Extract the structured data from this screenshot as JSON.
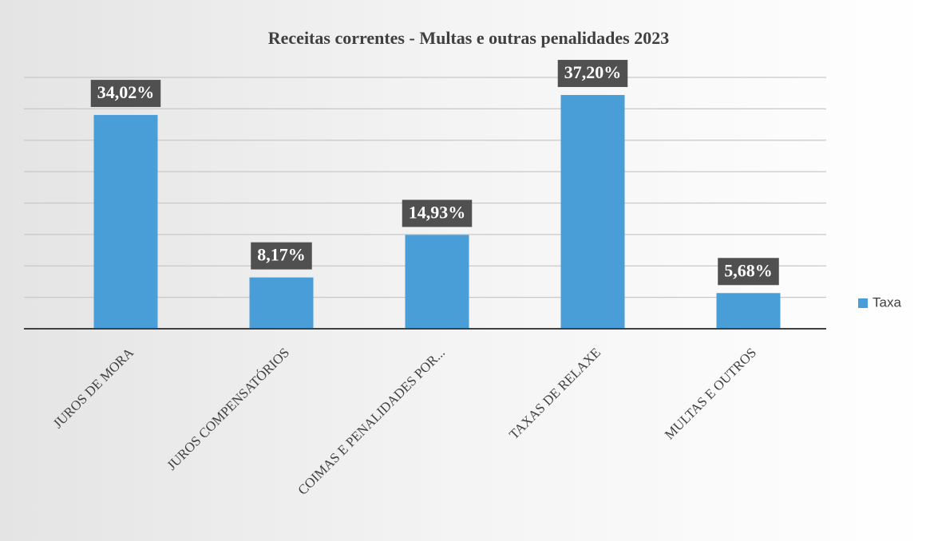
{
  "chart_data": {
    "type": "bar",
    "title": "Receitas correntes - Multas e outras penalidades 2023",
    "categories": [
      "JUROS DE MORA",
      "JUROS COMPENSATÓRIOS",
      "COIMAS E PENALIDADES POR...",
      "TAXAS DE RELAXE",
      "MULTAS E OUTROS"
    ],
    "series": [
      {
        "name": "Taxa",
        "color": "#4a9ed8",
        "values": [
          34.02,
          8.17,
          14.93,
          37.2,
          5.68
        ],
        "value_labels": [
          "34,02%",
          "8,17%",
          "14,93%",
          "37,20%",
          "5,68%"
        ]
      }
    ],
    "ylim": [
      0,
      40
    ],
    "yticks": [
      0,
      5,
      10,
      15,
      20,
      25,
      30,
      35,
      40
    ],
    "grid": true,
    "legend": "right"
  }
}
